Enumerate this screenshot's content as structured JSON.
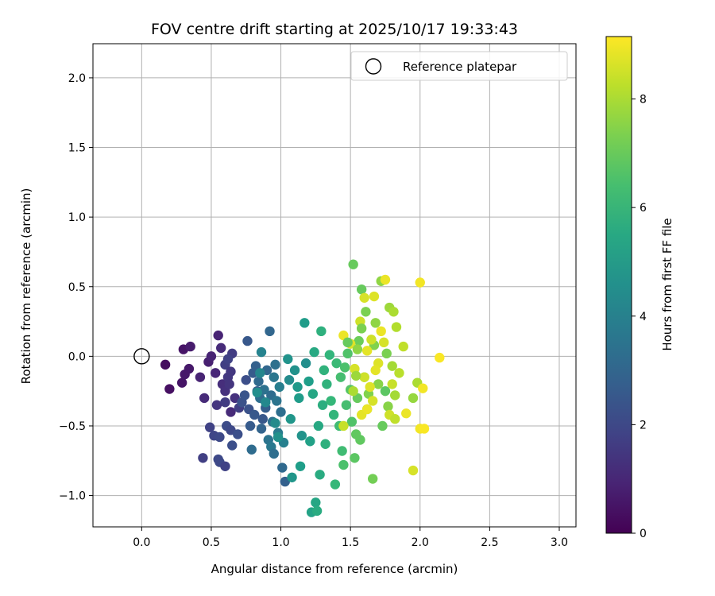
{
  "chart_data": {
    "type": "scatter",
    "title": "FOV centre drift starting at 2025/10/17 19:33:43",
    "xlabel": "Angular distance from reference (arcmin)",
    "ylabel": "Rotation from reference (arcmin)",
    "xlim": [
      -0.35,
      3.12
    ],
    "ylim": [
      -1.225,
      2.245
    ],
    "xticks": [
      0.0,
      0.5,
      1.0,
      1.5,
      2.0,
      2.5,
      3.0
    ],
    "xtick_labels": [
      "0.0",
      "0.5",
      "1.0",
      "1.5",
      "2.0",
      "2.5",
      "3.0"
    ],
    "yticks": [
      2.0,
      1.5,
      1.0,
      0.5,
      0.0,
      -0.5,
      -1.0
    ],
    "ytick_labels": [
      "2.0",
      "1.5",
      "1.0",
      "0.5",
      "0.0",
      "−0.5",
      "−1.0"
    ],
    "grid": true,
    "legend": {
      "position": "top-right",
      "label": "Reference platepar"
    },
    "reference_point": {
      "x": 0.0,
      "y": 0.0
    },
    "colorbar": {
      "label": "Hours from first FF file",
      "colormap": "viridis",
      "range": [
        0,
        9.15
      ],
      "ticks": [
        0,
        2,
        4,
        6,
        8
      ],
      "tick_labels": [
        "0",
        "2",
        "4",
        "6",
        "8"
      ]
    },
    "points": [
      {
        "x": 0.17,
        "y": -0.06,
        "h": 0.3
      },
      {
        "x": 0.2,
        "y": -0.235,
        "h": 0.4
      },
      {
        "x": 0.29,
        "y": -0.19,
        "h": 0.5
      },
      {
        "x": 0.3,
        "y": 0.05,
        "h": 0.5
      },
      {
        "x": 0.31,
        "y": -0.13,
        "h": 0.6
      },
      {
        "x": 0.34,
        "y": -0.09,
        "h": 0.6
      },
      {
        "x": 0.35,
        "y": 0.07,
        "h": 0.7
      },
      {
        "x": 0.42,
        "y": -0.15,
        "h": 0.9
      },
      {
        "x": 0.45,
        "y": -0.3,
        "h": 1.1
      },
      {
        "x": 0.48,
        "y": -0.04,
        "h": 0.8
      },
      {
        "x": 0.5,
        "y": 0.0,
        "h": 0.9
      },
      {
        "x": 0.53,
        "y": -0.12,
        "h": 1.0
      },
      {
        "x": 0.54,
        "y": -0.35,
        "h": 1.4
      },
      {
        "x": 0.55,
        "y": 0.15,
        "h": 0.9
      },
      {
        "x": 0.57,
        "y": 0.06,
        "h": 1.1
      },
      {
        "x": 0.58,
        "y": -0.2,
        "h": 1.2
      },
      {
        "x": 0.6,
        "y": -0.25,
        "h": 1.3
      },
      {
        "x": 0.62,
        "y": -0.15,
        "h": 1.5
      },
      {
        "x": 0.63,
        "y": -0.2,
        "h": 1.4
      },
      {
        "x": 0.64,
        "y": -0.4,
        "h": 1.1
      },
      {
        "x": 0.6,
        "y": -0.33,
        "h": 1.6
      },
      {
        "x": 0.65,
        "y": 0.02,
        "h": 1.6
      },
      {
        "x": 0.67,
        "y": -0.3,
        "h": 1.3
      },
      {
        "x": 0.6,
        "y": -0.06,
        "h": 1.7
      },
      {
        "x": 0.62,
        "y": -0.02,
        "h": 1.8
      },
      {
        "x": 0.64,
        "y": -0.11,
        "h": 1.5
      },
      {
        "x": 0.49,
        "y": -0.51,
        "h": 1.8
      },
      {
        "x": 0.52,
        "y": -0.57,
        "h": 1.9
      },
      {
        "x": 0.56,
        "y": -0.58,
        "h": 2.0
      },
      {
        "x": 0.44,
        "y": -0.73,
        "h": 1.7
      },
      {
        "x": 0.55,
        "y": -0.74,
        "h": 2.0
      },
      {
        "x": 0.56,
        "y": -0.76,
        "h": 2.0
      },
      {
        "x": 0.6,
        "y": -0.79,
        "h": 1.8
      },
      {
        "x": 0.61,
        "y": -0.5,
        "h": 2.1
      },
      {
        "x": 0.64,
        "y": -0.53,
        "h": 2.0
      },
      {
        "x": 0.65,
        "y": -0.64,
        "h": 2.2
      },
      {
        "x": 0.69,
        "y": -0.56,
        "h": 2.2
      },
      {
        "x": 0.7,
        "y": -0.37,
        "h": 1.7
      },
      {
        "x": 0.72,
        "y": -0.33,
        "h": 2.3
      },
      {
        "x": 0.74,
        "y": -0.28,
        "h": 2.4
      },
      {
        "x": 0.75,
        "y": -0.17,
        "h": 2.2
      },
      {
        "x": 0.76,
        "y": 0.11,
        "h": 2.5
      },
      {
        "x": 0.77,
        "y": -0.38,
        "h": 2.3
      },
      {
        "x": 0.78,
        "y": -0.5,
        "h": 2.6
      },
      {
        "x": 0.79,
        "y": -0.67,
        "h": 3.2
      },
      {
        "x": 0.8,
        "y": -0.12,
        "h": 2.6
      },
      {
        "x": 0.81,
        "y": -0.42,
        "h": 2.5
      },
      {
        "x": 0.82,
        "y": -0.07,
        "h": 2.8
      },
      {
        "x": 0.83,
        "y": -0.25,
        "h": 2.7
      },
      {
        "x": 0.84,
        "y": -0.18,
        "h": 3.1
      },
      {
        "x": 0.85,
        "y": -0.3,
        "h": 3.3
      },
      {
        "x": 0.86,
        "y": -0.52,
        "h": 2.9
      },
      {
        "x": 0.87,
        "y": -0.45,
        "h": 2.5
      },
      {
        "x": 0.88,
        "y": -0.24,
        "h": 3.4
      },
      {
        "x": 0.89,
        "y": -0.37,
        "h": 2.7
      },
      {
        "x": 0.9,
        "y": -0.1,
        "h": 3.0
      },
      {
        "x": 0.91,
        "y": -0.6,
        "h": 3.5
      },
      {
        "x": 0.92,
        "y": 0.18,
        "h": 3.0
      },
      {
        "x": 0.93,
        "y": -0.28,
        "h": 3.2
      },
      {
        "x": 0.94,
        "y": -0.47,
        "h": 3.4
      },
      {
        "x": 0.95,
        "y": -0.15,
        "h": 3.6
      },
      {
        "x": 0.96,
        "y": -0.06,
        "h": 3.4
      },
      {
        "x": 0.97,
        "y": -0.32,
        "h": 3.5
      },
      {
        "x": 0.98,
        "y": -0.55,
        "h": 3.8
      },
      {
        "x": 0.99,
        "y": -0.22,
        "h": 3.9
      },
      {
        "x": 1.0,
        "y": -0.4,
        "h": 3.3
      },
      {
        "x": 1.01,
        "y": -0.8,
        "h": 3.1
      },
      {
        "x": 1.03,
        "y": -0.9,
        "h": 2.8
      },
      {
        "x": 1.02,
        "y": -0.62,
        "h": 4.0
      },
      {
        "x": 0.93,
        "y": -0.65,
        "h": 3.7
      },
      {
        "x": 0.95,
        "y": -0.7,
        "h": 3.3
      },
      {
        "x": 0.86,
        "y": 0.03,
        "h": 4.1
      },
      {
        "x": 0.85,
        "y": -0.12,
        "h": 4.2
      },
      {
        "x": 0.89,
        "y": -0.33,
        "h": 4.3
      },
      {
        "x": 0.96,
        "y": -0.48,
        "h": 4.4
      },
      {
        "x": 0.98,
        "y": -0.58,
        "h": 4.6
      },
      {
        "x": 0.83,
        "y": -0.26,
        "h": 4.5
      },
      {
        "x": 1.05,
        "y": -0.02,
        "h": 4.7
      },
      {
        "x": 1.06,
        "y": -0.17,
        "h": 4.4
      },
      {
        "x": 1.07,
        "y": -0.45,
        "h": 4.8
      },
      {
        "x": 1.08,
        "y": -0.87,
        "h": 4.8
      },
      {
        "x": 1.1,
        "y": -0.1,
        "h": 4.6
      },
      {
        "x": 1.12,
        "y": -0.22,
        "h": 4.9
      },
      {
        "x": 1.13,
        "y": -0.3,
        "h": 5.0
      },
      {
        "x": 1.15,
        "y": -0.57,
        "h": 4.7
      },
      {
        "x": 1.14,
        "y": -0.79,
        "h": 5.1
      },
      {
        "x": 1.17,
        "y": 0.24,
        "h": 5.0
      },
      {
        "x": 1.18,
        "y": -0.05,
        "h": 4.5
      },
      {
        "x": 1.2,
        "y": -0.18,
        "h": 5.1
      },
      {
        "x": 1.21,
        "y": -0.61,
        "h": 5.2
      },
      {
        "x": 1.22,
        "y": -1.12,
        "h": 5.3
      },
      {
        "x": 1.23,
        "y": -0.27,
        "h": 5.4
      },
      {
        "x": 1.24,
        "y": 0.03,
        "h": 5.5
      },
      {
        "x": 1.25,
        "y": -1.05,
        "h": 5.4
      },
      {
        "x": 1.26,
        "y": -1.11,
        "h": 5.6
      },
      {
        "x": 1.27,
        "y": -0.5,
        "h": 5.5
      },
      {
        "x": 1.28,
        "y": -0.85,
        "h": 5.6
      },
      {
        "x": 1.29,
        "y": 0.18,
        "h": 5.8
      },
      {
        "x": 1.3,
        "y": -0.35,
        "h": 5.7
      },
      {
        "x": 1.31,
        "y": -0.1,
        "h": 5.9
      },
      {
        "x": 1.32,
        "y": -0.63,
        "h": 5.8
      },
      {
        "x": 1.33,
        "y": -0.2,
        "h": 5.9
      },
      {
        "x": 1.35,
        "y": 0.01,
        "h": 6.0
      },
      {
        "x": 1.36,
        "y": -0.32,
        "h": 6.1
      },
      {
        "x": 1.38,
        "y": -0.42,
        "h": 6.0
      },
      {
        "x": 1.39,
        "y": -0.92,
        "h": 6.1
      },
      {
        "x": 1.4,
        "y": -0.05,
        "h": 6.2
      },
      {
        "x": 1.42,
        "y": -0.5,
        "h": 6.3
      },
      {
        "x": 1.43,
        "y": -0.15,
        "h": 6.4
      },
      {
        "x": 1.44,
        "y": -0.68,
        "h": 6.3
      },
      {
        "x": 1.45,
        "y": -0.78,
        "h": 6.5
      },
      {
        "x": 1.46,
        "y": -0.08,
        "h": 6.5
      },
      {
        "x": 1.47,
        "y": -0.35,
        "h": 6.4
      },
      {
        "x": 1.48,
        "y": 0.02,
        "h": 6.6
      },
      {
        "x": 1.5,
        "y": -0.24,
        "h": 6.7
      },
      {
        "x": 1.51,
        "y": -0.47,
        "h": 6.6
      },
      {
        "x": 1.52,
        "y": 0.66,
        "h": 7.0
      },
      {
        "x": 1.53,
        "y": -0.73,
        "h": 6.8
      },
      {
        "x": 1.54,
        "y": -0.56,
        "h": 6.9
      },
      {
        "x": 1.55,
        "y": -0.3,
        "h": 7.0
      },
      {
        "x": 1.56,
        "y": 0.11,
        "h": 7.1
      },
      {
        "x": 1.57,
        "y": -0.6,
        "h": 6.9
      },
      {
        "x": 1.58,
        "y": 0.48,
        "h": 7.0
      },
      {
        "x": 1.6,
        "y": -0.15,
        "h": 7.2
      },
      {
        "x": 1.61,
        "y": 0.32,
        "h": 7.3
      },
      {
        "x": 1.62,
        "y": -0.38,
        "h": 7.2
      },
      {
        "x": 1.63,
        "y": -0.27,
        "h": 7.4
      },
      {
        "x": 1.66,
        "y": -0.88,
        "h": 7.2
      },
      {
        "x": 1.67,
        "y": 0.08,
        "h": 7.4
      },
      {
        "x": 1.68,
        "y": 0.24,
        "h": 7.6
      },
      {
        "x": 1.7,
        "y": -0.2,
        "h": 7.5
      },
      {
        "x": 1.72,
        "y": 0.54,
        "h": 7.6
      },
      {
        "x": 1.73,
        "y": -0.5,
        "h": 7.0
      },
      {
        "x": 1.75,
        "y": -0.25,
        "h": 6.8
      },
      {
        "x": 1.76,
        "y": 0.02,
        "h": 7.3
      },
      {
        "x": 1.77,
        "y": -0.36,
        "h": 7.5
      },
      {
        "x": 1.78,
        "y": 0.35,
        "h": 7.8
      },
      {
        "x": 1.8,
        "y": -0.07,
        "h": 7.9
      },
      {
        "x": 1.81,
        "y": 0.32,
        "h": 8.0
      },
      {
        "x": 1.82,
        "y": -0.28,
        "h": 7.9
      },
      {
        "x": 1.83,
        "y": 0.21,
        "h": 8.1
      },
      {
        "x": 1.85,
        "y": -0.12,
        "h": 8.2
      },
      {
        "x": 1.88,
        "y": 0.07,
        "h": 8.3
      },
      {
        "x": 1.95,
        "y": -0.3,
        "h": 7.7
      },
      {
        "x": 1.98,
        "y": -0.19,
        "h": 8.0
      },
      {
        "x": 1.6,
        "y": 0.42,
        "h": 8.6
      },
      {
        "x": 1.67,
        "y": 0.43,
        "h": 8.7
      },
      {
        "x": 1.75,
        "y": 0.55,
        "h": 8.9
      },
      {
        "x": 2.0,
        "y": 0.53,
        "h": 9.0
      },
      {
        "x": 1.62,
        "y": 0.04,
        "h": 8.8
      },
      {
        "x": 1.65,
        "y": 0.12,
        "h": 8.5
      },
      {
        "x": 1.7,
        "y": -0.05,
        "h": 8.7
      },
      {
        "x": 1.72,
        "y": 0.18,
        "h": 8.9
      },
      {
        "x": 1.74,
        "y": 0.1,
        "h": 8.6
      },
      {
        "x": 1.58,
        "y": -0.42,
        "h": 8.8
      },
      {
        "x": 1.6,
        "y": -0.15,
        "h": 8.5
      },
      {
        "x": 1.62,
        "y": -0.38,
        "h": 8.9
      },
      {
        "x": 1.64,
        "y": -0.22,
        "h": 8.7
      },
      {
        "x": 1.66,
        "y": -0.32,
        "h": 8.6
      },
      {
        "x": 1.68,
        "y": -0.1,
        "h": 8.8
      },
      {
        "x": 1.78,
        "y": -0.42,
        "h": 8.5
      },
      {
        "x": 1.8,
        "y": -0.2,
        "h": 8.4
      },
      {
        "x": 1.82,
        "y": -0.45,
        "h": 8.3
      },
      {
        "x": 1.9,
        "y": -0.41,
        "h": 8.9
      },
      {
        "x": 1.95,
        "y": -0.82,
        "h": 8.6
      },
      {
        "x": 2.0,
        "y": -0.52,
        "h": 9.0
      },
      {
        "x": 2.03,
        "y": -0.52,
        "h": 9.1
      },
      {
        "x": 2.02,
        "y": -0.23,
        "h": 9.0
      },
      {
        "x": 2.14,
        "y": -0.01,
        "h": 9.1
      },
      {
        "x": 1.45,
        "y": 0.15,
        "h": 8.9
      },
      {
        "x": 1.5,
        "y": 0.09,
        "h": 8.7
      },
      {
        "x": 1.53,
        "y": -0.09,
        "h": 8.6
      },
      {
        "x": 1.57,
        "y": 0.25,
        "h": 8.5
      },
      {
        "x": 1.45,
        "y": -0.5,
        "h": 8.4
      },
      {
        "x": 1.52,
        "y": -0.25,
        "h": 8.0
      },
      {
        "x": 1.55,
        "y": 0.05,
        "h": 7.6
      },
      {
        "x": 1.58,
        "y": 0.2,
        "h": 7.3
      },
      {
        "x": 1.48,
        "y": 0.1,
        "h": 7.0
      },
      {
        "x": 1.54,
        "y": -0.14,
        "h": 7.8
      }
    ]
  }
}
